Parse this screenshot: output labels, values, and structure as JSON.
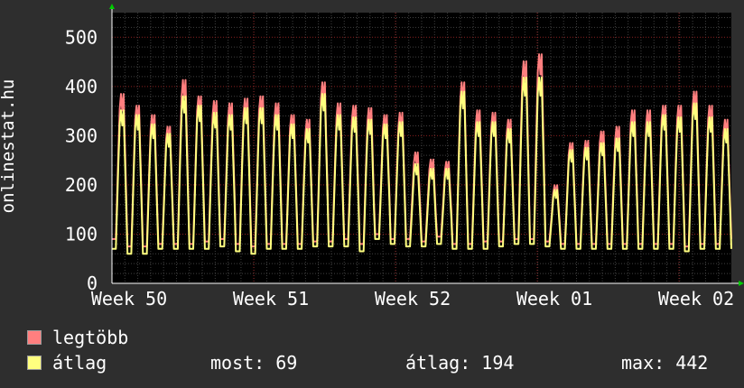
{
  "chart_data": {
    "type": "line",
    "title": "",
    "ylabel": "onlinestat.hu",
    "xlabel": "",
    "ylim": [
      0,
      550
    ],
    "yticks": [
      "0",
      "100",
      "200",
      "300",
      "400",
      "500"
    ],
    "xticks": [
      "Week 50",
      "Week 51",
      "Week 52",
      "Week 01",
      "Week 02"
    ],
    "grid": true,
    "legend_position": "bottom-left",
    "series": [
      {
        "name": "legtöbb",
        "color": "#ff7f7f",
        "daily_min": [
          90,
          75,
          75,
          80,
          80,
          80,
          85,
          90,
          80,
          75,
          80,
          80,
          80,
          85,
          85,
          90,
          80,
          100,
          90,
          90,
          85,
          95,
          80,
          80,
          85,
          85,
          90,
          90,
          85,
          80,
          80,
          80,
          80,
          80,
          80,
          80,
          80,
          75,
          80,
          80,
          80,
          80,
          80,
          75,
          75,
          80,
          80,
          80
        ],
        "daily_max": [
          405,
          380,
          360,
          335,
          435,
          400,
          390,
          385,
          395,
          400,
          385,
          360,
          350,
          430,
          385,
          380,
          375,
          360,
          365,
          280,
          265,
          260,
          430,
          370,
          365,
          350,
          475,
          490,
          210,
          300,
          305,
          325,
          335,
          370,
          370,
          380,
          380,
          410,
          380,
          350
        ]
      },
      {
        "name": "átlag",
        "color": "#ffff7f",
        "daily_min": [
          70,
          60,
          60,
          70,
          70,
          70,
          70,
          75,
          65,
          60,
          70,
          70,
          70,
          75,
          75,
          75,
          65,
          90,
          80,
          75,
          75,
          80,
          70,
          70,
          70,
          75,
          80,
          80,
          75,
          70,
          70,
          70,
          70,
          70,
          70,
          70,
          70,
          65,
          70,
          70,
          70,
          70,
          70,
          65,
          65,
          70,
          70,
          70
        ],
        "daily_max": [
          370,
          360,
          340,
          320,
          400,
          380,
          365,
          360,
          375,
          375,
          360,
          340,
          330,
          405,
          360,
          355,
          350,
          340,
          345,
          255,
          245,
          245,
          410,
          345,
          345,
          330,
          440,
          440,
          200,
          285,
          290,
          300,
          310,
          345,
          345,
          360,
          355,
          385,
          355,
          330
        ]
      }
    ]
  },
  "legend": [
    {
      "label": "legtöbb",
      "color": "#ff7f7f"
    },
    {
      "label": "átlag",
      "color": "#ffff7f"
    }
  ],
  "stats": {
    "current": "most: 69",
    "average": "átlag: 194",
    "max": "max: 442"
  },
  "colors": {
    "background": "#2e2e2e",
    "plot_background": "#000000",
    "axis": "#ffffff",
    "grid_minor": "#404040",
    "grid_major": "#8a2020",
    "arrow": "#00cc00"
  }
}
